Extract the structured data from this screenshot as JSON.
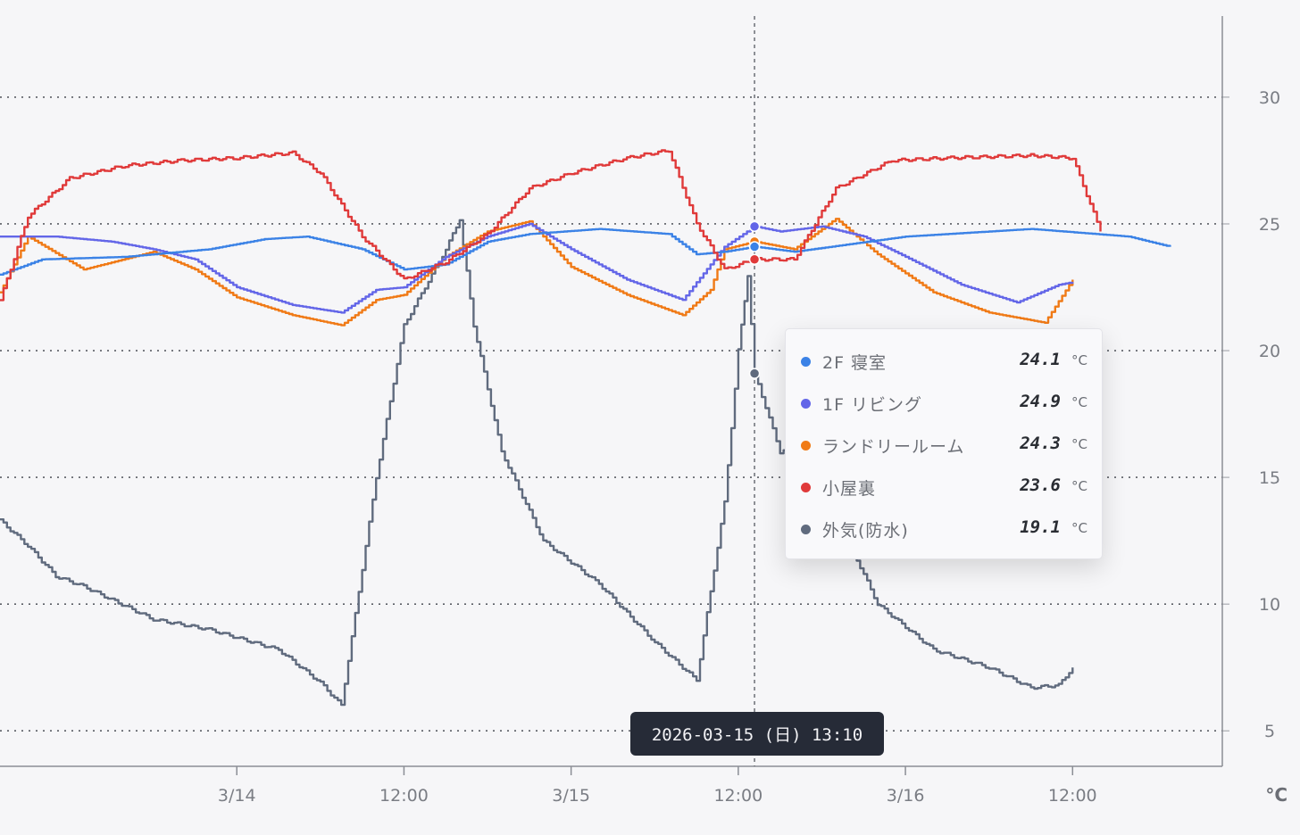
{
  "chart_data": {
    "type": "line",
    "x_type": "datetime",
    "x_range": [
      "2026-03-13 07:00",
      "2026-03-16 22:45"
    ],
    "xticks": [
      {
        "t": "2026-03-14 00:00",
        "label": "3/14"
      },
      {
        "t": "2026-03-14 12:00",
        "label": "12:00"
      },
      {
        "t": "2026-03-15 00:00",
        "label": "3/15"
      },
      {
        "t": "2026-03-15 12:00",
        "label": "12:00"
      },
      {
        "t": "2026-03-16 00:00",
        "label": "3/16"
      },
      {
        "t": "2026-03-16 12:00",
        "label": "12:00"
      }
    ],
    "ylim": [
      3.6,
      33.2
    ],
    "yticks": [
      5,
      10,
      15,
      20,
      25,
      30
    ],
    "y_unit": "°C",
    "y_axis_position": "right",
    "grid": {
      "horizontal": true,
      "style": "dotted"
    },
    "series": [
      {
        "name": "2F 寝室",
        "color": "#3b82e6",
        "points": [
          [
            "2026-03-13 07:00",
            23.0
          ],
          [
            "2026-03-13 10:00",
            23.6
          ],
          [
            "2026-03-13 16:00",
            23.7
          ],
          [
            "2026-03-13 22:00",
            24.0
          ],
          [
            "2026-03-14 02:00",
            24.4
          ],
          [
            "2026-03-14 05:00",
            24.5
          ],
          [
            "2026-03-14 09:00",
            24.0
          ],
          [
            "2026-03-14 12:00",
            23.2
          ],
          [
            "2026-03-14 15:00",
            23.4
          ],
          [
            "2026-03-14 18:00",
            24.3
          ],
          [
            "2026-03-14 21:00",
            24.6
          ],
          [
            "2026-03-15 02:00",
            24.8
          ],
          [
            "2026-03-15 07:00",
            24.6
          ],
          [
            "2026-03-15 09:00",
            23.8
          ],
          [
            "2026-03-15 11:00",
            23.9
          ],
          [
            "2026-03-15 13:10",
            24.1
          ],
          [
            "2026-03-15 16:00",
            23.9
          ],
          [
            "2026-03-15 20:00",
            24.2
          ],
          [
            "2026-03-16 00:00",
            24.5
          ],
          [
            "2026-03-16 06:00",
            24.7
          ],
          [
            "2026-03-16 09:00",
            24.8
          ],
          [
            "2026-03-16 16:00",
            24.5
          ],
          [
            "2026-03-16 19:00",
            24.1
          ]
        ]
      },
      {
        "name": "1F リビング",
        "color": "#6366e8",
        "points": [
          [
            "2026-03-13 07:00",
            24.5
          ],
          [
            "2026-03-13 11:00",
            24.5
          ],
          [
            "2026-03-13 15:00",
            24.3
          ],
          [
            "2026-03-13 18:00",
            24.0
          ],
          [
            "2026-03-13 21:00",
            23.6
          ],
          [
            "2026-03-14 00:00",
            22.5
          ],
          [
            "2026-03-14 04:00",
            21.8
          ],
          [
            "2026-03-14 07:30",
            21.5
          ],
          [
            "2026-03-14 10:00",
            22.4
          ],
          [
            "2026-03-14 12:00",
            22.5
          ],
          [
            "2026-03-14 15:00",
            23.7
          ],
          [
            "2026-03-14 18:00",
            24.5
          ],
          [
            "2026-03-14 21:00",
            25.0
          ],
          [
            "2026-03-15 00:00",
            24.0
          ],
          [
            "2026-03-15 04:00",
            22.8
          ],
          [
            "2026-03-15 08:00",
            22.0
          ],
          [
            "2026-03-15 11:00",
            24.1
          ],
          [
            "2026-03-15 13:10",
            24.9
          ],
          [
            "2026-03-15 15:00",
            24.7
          ],
          [
            "2026-03-15 18:00",
            24.9
          ],
          [
            "2026-03-15 21:00",
            24.5
          ],
          [
            "2026-03-16 00:00",
            23.7
          ],
          [
            "2026-03-16 04:00",
            22.6
          ],
          [
            "2026-03-16 08:00",
            21.9
          ],
          [
            "2026-03-16 11:00",
            22.6
          ],
          [
            "2026-03-16 12:00",
            22.7
          ]
        ]
      },
      {
        "name": "ランドリールーム",
        "color": "#f07a16",
        "points": [
          [
            "2026-03-13 07:00",
            22.3
          ],
          [
            "2026-03-13 09:00",
            24.5
          ],
          [
            "2026-03-13 13:00",
            23.2
          ],
          [
            "2026-03-13 18:00",
            23.9
          ],
          [
            "2026-03-13 21:00",
            23.2
          ],
          [
            "2026-03-14 00:00",
            22.1
          ],
          [
            "2026-03-14 04:00",
            21.4
          ],
          [
            "2026-03-14 07:30",
            21.0
          ],
          [
            "2026-03-14 10:00",
            22.0
          ],
          [
            "2026-03-14 12:00",
            22.2
          ],
          [
            "2026-03-14 15:00",
            23.7
          ],
          [
            "2026-03-14 18:00",
            24.7
          ],
          [
            "2026-03-14 21:00",
            25.1
          ],
          [
            "2026-03-15 00:00",
            23.3
          ],
          [
            "2026-03-15 04:00",
            22.2
          ],
          [
            "2026-03-15 08:00",
            21.4
          ],
          [
            "2026-03-15 10:00",
            22.4
          ],
          [
            "2026-03-15 11:00",
            24.0
          ],
          [
            "2026-03-15 13:10",
            24.3
          ],
          [
            "2026-03-15 16:00",
            24.0
          ],
          [
            "2026-03-15 19:00",
            25.2
          ],
          [
            "2026-03-15 22:00",
            23.8
          ],
          [
            "2026-03-16 02:00",
            22.3
          ],
          [
            "2026-03-16 06:00",
            21.5
          ],
          [
            "2026-03-16 10:00",
            21.1
          ],
          [
            "2026-03-16 12:00",
            22.8
          ]
        ]
      },
      {
        "name": "小屋裏",
        "color": "#e03a3a",
        "points": [
          [
            "2026-03-13 07:00",
            22.0
          ],
          [
            "2026-03-13 09:00",
            25.3
          ],
          [
            "2026-03-13 12:00",
            26.8
          ],
          [
            "2026-03-13 16:00",
            27.3
          ],
          [
            "2026-03-13 20:00",
            27.5
          ],
          [
            "2026-03-14 00:00",
            27.6
          ],
          [
            "2026-03-14 04:00",
            27.8
          ],
          [
            "2026-03-14 06:00",
            27.0
          ],
          [
            "2026-03-14 09:00",
            24.5
          ],
          [
            "2026-03-14 12:00",
            22.8
          ],
          [
            "2026-03-14 15:00",
            23.5
          ],
          [
            "2026-03-14 18:00",
            24.6
          ],
          [
            "2026-03-14 21:00",
            26.4
          ],
          [
            "2026-03-15 00:00",
            27.0
          ],
          [
            "2026-03-15 04:00",
            27.6
          ],
          [
            "2026-03-15 07:00",
            27.9
          ],
          [
            "2026-03-15 09:00",
            25.0
          ],
          [
            "2026-03-15 11:00",
            23.2
          ],
          [
            "2026-03-15 13:10",
            23.6
          ],
          [
            "2026-03-15 16:00",
            23.6
          ],
          [
            "2026-03-15 19:00",
            26.4
          ],
          [
            "2026-03-15 23:00",
            27.5
          ],
          [
            "2026-03-16 03:00",
            27.6
          ],
          [
            "2026-03-16 09:00",
            27.7
          ],
          [
            "2026-03-16 12:00",
            27.6
          ],
          [
            "2026-03-16 14:00",
            24.7
          ]
        ]
      },
      {
        "name": "外気(防水)",
        "color": "#606b7e",
        "points": [
          [
            "2026-03-13 07:00",
            13.3
          ],
          [
            "2026-03-13 09:00",
            12.3
          ],
          [
            "2026-03-13 11:00",
            11.1
          ],
          [
            "2026-03-13 13:00",
            10.7
          ],
          [
            "2026-03-13 18:00",
            9.4
          ],
          [
            "2026-03-13 22:00",
            9.0
          ],
          [
            "2026-03-14 03:00",
            8.2
          ],
          [
            "2026-03-14 06:00",
            6.9
          ],
          [
            "2026-03-14 07:30",
            6.0
          ],
          [
            "2026-03-14 10:00",
            15.0
          ],
          [
            "2026-03-14 12:00",
            21.0
          ],
          [
            "2026-03-14 15:00",
            24.0
          ],
          [
            "2026-03-14 16:00",
            25.2
          ],
          [
            "2026-03-14 17:00",
            21.0
          ],
          [
            "2026-03-14 19:00",
            16.0
          ],
          [
            "2026-03-14 22:00",
            12.5
          ],
          [
            "2026-03-15 02:00",
            10.8
          ],
          [
            "2026-03-15 06:00",
            8.5
          ],
          [
            "2026-03-15 09:00",
            7.0
          ],
          [
            "2026-03-15 11:00",
            14.0
          ],
          [
            "2026-03-15 12:00",
            20.0
          ],
          [
            "2026-03-15 12:40",
            23.0
          ],
          [
            "2026-03-15 13:10",
            19.1
          ],
          [
            "2026-03-15 15:00",
            16.0
          ],
          [
            "2026-03-15 17:00",
            16.5
          ],
          [
            "2026-03-15 19:00",
            13.5
          ],
          [
            "2026-03-15 22:00",
            10.0
          ],
          [
            "2026-03-16 02:00",
            8.2
          ],
          [
            "2026-03-16 06:00",
            7.5
          ],
          [
            "2026-03-16 09:00",
            6.7
          ],
          [
            "2026-03-16 11:00",
            6.8
          ],
          [
            "2026-03-16 12:00",
            7.5
          ]
        ]
      }
    ],
    "crosshair": {
      "t": "2026-03-15 13:10",
      "label": "2026-03-15 (日) 13:10"
    },
    "tooltip": {
      "unit": "°C",
      "rows": [
        {
          "name": "2F 寝室",
          "value": "24.1",
          "color": "#3b82e6"
        },
        {
          "name": "1F リビング",
          "value": "24.9",
          "color": "#6366e8"
        },
        {
          "name": "ランドリールーム",
          "value": "24.3",
          "color": "#f07a16"
        },
        {
          "name": "小屋裏",
          "value": "23.6",
          "color": "#e03a3a"
        },
        {
          "name": "外気(防水)",
          "value": "19.1",
          "color": "#606b7e"
        }
      ]
    }
  }
}
